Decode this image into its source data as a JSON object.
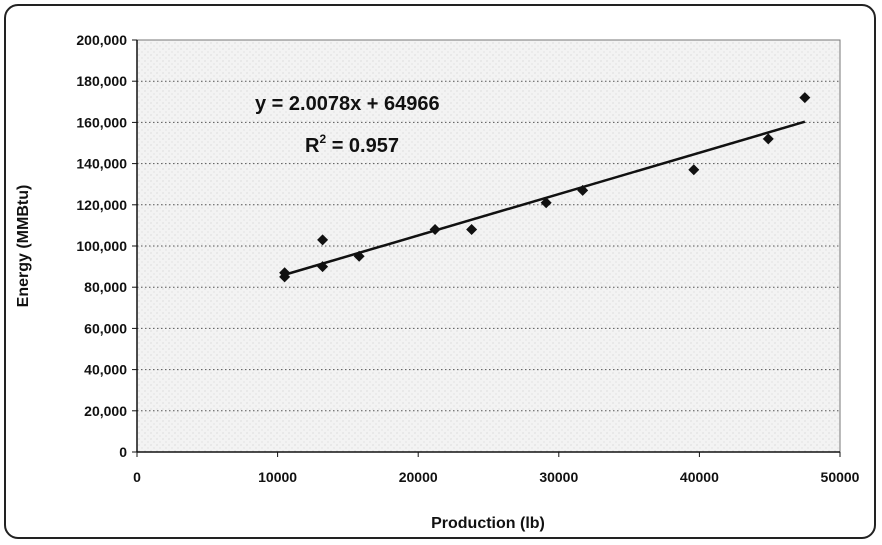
{
  "chart_data": {
    "type": "scatter",
    "title": "",
    "xlabel": "Production (lb)",
    "ylabel": "Energy (MMBtu)",
    "xlim": [
      0,
      50000
    ],
    "ylim": [
      0,
      200000
    ],
    "x_ticks": [
      "0",
      "10000",
      "20000",
      "30000",
      "40000",
      "50000"
    ],
    "y_ticks": [
      "0",
      "20,000",
      "40,000",
      "60,000",
      "80,000",
      "100,000",
      "120,000",
      "140,000",
      "160,000",
      "180,000",
      "200,000"
    ],
    "grid": true,
    "marker": "diamond",
    "series": [
      {
        "x": [
          10500,
          10500,
          13200,
          13200,
          15800,
          21200,
          23800,
          29100,
          31700,
          39600,
          44900,
          47500
        ],
        "y": [
          85000,
          87000,
          90000,
          103000,
          95000,
          108000,
          108000,
          121000,
          127000,
          137000,
          152000,
          172000
        ]
      }
    ],
    "trendline": {
      "type": "linear",
      "slope": 2.0078,
      "intercept": 64966,
      "x_range": [
        10500,
        47500
      ],
      "equation_label": "y = 2.0078x + 64966",
      "r2_prefix": "R",
      "r2_exponent": "2",
      "r2_value": " = 0.957"
    }
  }
}
